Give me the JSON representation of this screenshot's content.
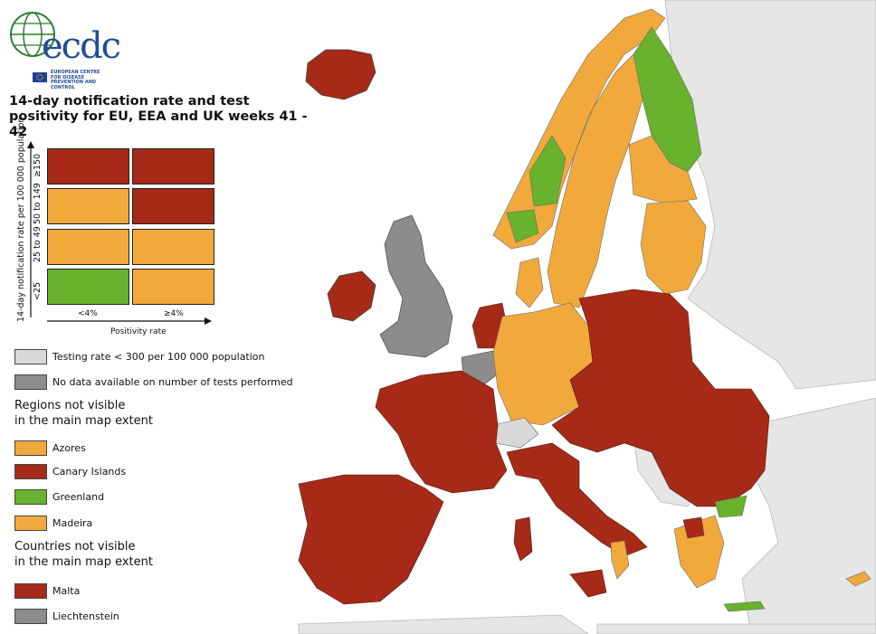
{
  "title": "14-day notification rate and test positivity for EU, EEA and UK weeks 41 - 42",
  "logo": {
    "word": "ecdc",
    "sub": "EUROPEAN CENTRE FOR DISEASE PREVENTION AND CONTROL"
  },
  "colors": {
    "red": "#a62a17",
    "orange": "#f2a93b",
    "green": "#68b22e",
    "light_grey": "#d8d8d8",
    "dark_grey": "#8c8c8c",
    "outside": "#e6e6e6",
    "sea": "#ffffff"
  },
  "matrix": {
    "y_axis_label": "14-day notification rate per 100 000 population",
    "y_rows": [
      "≥150",
      "50 to 149",
      "25 to 49",
      "<25"
    ],
    "x_cols": [
      "<4%",
      "≥4%"
    ],
    "x_axis_label": "Positivity rate",
    "cells": [
      [
        "red",
        "red"
      ],
      [
        "orange",
        "red"
      ],
      [
        "orange",
        "orange"
      ],
      [
        "green",
        "orange"
      ]
    ]
  },
  "legend": {
    "testing_rate": "Testing rate < 300 per 100 000 population",
    "no_data": "No data available on number of tests performed",
    "regions_header_1": "Regions not visible",
    "regions_header_2": "in the main map extent",
    "regions": [
      {
        "label": "Azores",
        "color": "orange"
      },
      {
        "label": "Canary Islands",
        "color": "red"
      },
      {
        "label": "Greenland",
        "color": "green"
      },
      {
        "label": "Madeira",
        "color": "orange"
      }
    ],
    "countries_header_1": "Countries not visible",
    "countries_header_2": "in the main map extent",
    "countries": [
      {
        "label": "Malta",
        "color": "red"
      },
      {
        "label": "Liechtenstein",
        "color": "dark_grey"
      }
    ]
  }
}
